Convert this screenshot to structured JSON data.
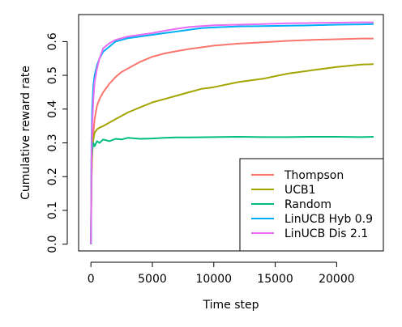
{
  "chart_data": {
    "type": "line",
    "title": "",
    "xlabel": "Time step",
    "ylabel": "Cumulative reward rate",
    "xlim": [
      -1000,
      23800
    ],
    "ylim": [
      -0.02,
      0.68
    ],
    "x_ticks": [
      0,
      5000,
      10000,
      15000,
      20000
    ],
    "x_tick_labels": [
      "0",
      "5000",
      "10000",
      "15000",
      "20000"
    ],
    "y_ticks": [
      0.0,
      0.1,
      0.2,
      0.3,
      0.4,
      0.5,
      0.6
    ],
    "y_tick_labels": [
      "0.0",
      "0.1",
      "0.2",
      "0.3",
      "0.4",
      "0.5",
      "0.6"
    ],
    "grid": false,
    "legend_position": "bottom-right",
    "series": [
      {
        "name": "Thompson",
        "color": "#F8766D",
        "x": [
          0,
          50,
          100,
          200,
          300,
          500,
          700,
          1000,
          1500,
          2000,
          2500,
          3000,
          4000,
          5000,
          6000,
          7000,
          8000,
          9000,
          10000,
          12000,
          14000,
          16000,
          18000,
          20000,
          22000,
          23000
        ],
        "y": [
          0.0,
          0.18,
          0.26,
          0.33,
          0.37,
          0.41,
          0.43,
          0.45,
          0.475,
          0.495,
          0.51,
          0.52,
          0.54,
          0.555,
          0.565,
          0.572,
          0.578,
          0.583,
          0.588,
          0.594,
          0.598,
          0.602,
          0.605,
          0.607,
          0.609,
          0.609
        ]
      },
      {
        "name": "UCB1",
        "color": "#A3A500",
        "x": [
          0,
          50,
          100,
          200,
          300,
          500,
          700,
          1000,
          1500,
          2000,
          2500,
          3000,
          4000,
          5000,
          6000,
          7000,
          8000,
          9000,
          10000,
          12000,
          14000,
          16000,
          18000,
          20000,
          22000,
          23000
        ],
        "y": [
          0.0,
          0.2,
          0.27,
          0.31,
          0.33,
          0.34,
          0.345,
          0.35,
          0.36,
          0.37,
          0.38,
          0.39,
          0.405,
          0.42,
          0.43,
          0.44,
          0.45,
          0.46,
          0.465,
          0.48,
          0.49,
          0.505,
          0.515,
          0.525,
          0.532,
          0.533
        ]
      },
      {
        "name": "Random",
        "color": "#00BF7D",
        "x": [
          0,
          50,
          100,
          200,
          300,
          500,
          700,
          1000,
          1500,
          2000,
          2500,
          3000,
          4000,
          5000,
          6000,
          7000,
          8000,
          10000,
          12000,
          14000,
          16000,
          18000,
          20000,
          22000,
          23000
        ],
        "y": [
          0.0,
          0.25,
          0.28,
          0.3,
          0.29,
          0.305,
          0.3,
          0.31,
          0.305,
          0.312,
          0.31,
          0.315,
          0.312,
          0.313,
          0.315,
          0.316,
          0.316,
          0.317,
          0.318,
          0.317,
          0.317,
          0.318,
          0.318,
          0.317,
          0.318
        ]
      },
      {
        "name": "LinUCB Hyb 0.9",
        "color": "#00B0F6",
        "x": [
          0,
          50,
          100,
          200,
          300,
          500,
          700,
          1000,
          1500,
          2000,
          2500,
          3000,
          4000,
          5000,
          6000,
          7000,
          8000,
          9000,
          10000,
          12000,
          14000,
          16000,
          18000,
          20000,
          22000,
          23000
        ],
        "y": [
          0.0,
          0.3,
          0.4,
          0.47,
          0.5,
          0.53,
          0.55,
          0.57,
          0.585,
          0.6,
          0.605,
          0.61,
          0.615,
          0.62,
          0.625,
          0.63,
          0.635,
          0.64,
          0.642,
          0.645,
          0.646,
          0.647,
          0.648,
          0.65,
          0.651,
          0.652
        ]
      },
      {
        "name": "LinUCB Dis 2.1",
        "color": "#E76BF3",
        "x": [
          0,
          50,
          100,
          200,
          300,
          500,
          700,
          1000,
          1500,
          2000,
          2500,
          3000,
          4000,
          5000,
          6000,
          7000,
          8000,
          9000,
          10000,
          12000,
          14000,
          16000,
          18000,
          20000,
          22000,
          23000
        ],
        "y": [
          0.0,
          0.25,
          0.35,
          0.43,
          0.48,
          0.52,
          0.55,
          0.58,
          0.595,
          0.605,
          0.61,
          0.615,
          0.62,
          0.625,
          0.632,
          0.638,
          0.643,
          0.646,
          0.648,
          0.65,
          0.652,
          0.654,
          0.655,
          0.656,
          0.657,
          0.657
        ]
      }
    ]
  }
}
